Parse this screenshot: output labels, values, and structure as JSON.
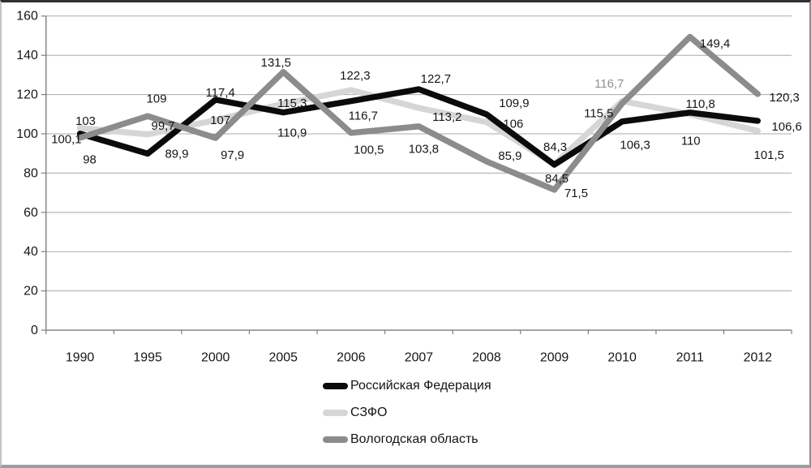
{
  "chart_data": {
    "type": "line",
    "title": "",
    "xlabel": "",
    "ylabel": "",
    "categories": [
      "1990",
      "1995",
      "2000",
      "2005",
      "2006",
      "2007",
      "2008",
      "2009",
      "2010",
      "2011",
      "2012"
    ],
    "y_axis": {
      "min": 0,
      "max": 160,
      "step": 20,
      "tick_labels": [
        "0",
        "20",
        "40",
        "60",
        "80",
        "100",
        "120",
        "140",
        "160"
      ]
    },
    "grid": true,
    "legend_position": "bottom-left",
    "decimal_separator": ",",
    "colors": {
      "gridline": "#a9a9a9",
      "axis": "#7d7d7d",
      "label_text": "#151515",
      "muted_label_text": "#8f8f8f"
    },
    "series": [
      {
        "name": "Российская Федерация",
        "color": "#0b0b0b",
        "values": [
          100.1,
          89.9,
          117.4,
          110.9,
          116.7,
          122.7,
          109.9,
          84.3,
          106.3,
          110.8,
          106.6
        ],
        "labels": [
          "100,1",
          "89,9",
          "117,4",
          "110,9",
          "116,7",
          "122,7",
          "109,9",
          "84,3",
          "106,3",
          "110,8",
          "106,6"
        ]
      },
      {
        "name": "СЗФО",
        "color": "#d6d6d6",
        "values": [
          103,
          99.7,
          107,
          115.3,
          122.3,
          113.2,
          106,
          84.5,
          116.7,
          110,
          101.5
        ],
        "labels": [
          "103",
          "99,7",
          "107",
          "115,3",
          "122,3",
          "113,2",
          "106",
          "84,5",
          "116,7",
          "110",
          "101,5"
        ],
        "label_color_overrides": {
          "8": "#8f8f8f"
        }
      },
      {
        "name": "Вологодская область",
        "color": "#8c8c8c",
        "values": [
          98,
          109,
          97.9,
          131.5,
          100.5,
          103.8,
          85.9,
          71.5,
          115.5,
          149.4,
          120.3
        ],
        "labels": [
          "98",
          "109",
          "97,9",
          "131,5",
          "100,5",
          "103,8",
          "85,9",
          "71,5",
          "115,5",
          "149,4",
          "120,3"
        ]
      }
    ]
  }
}
